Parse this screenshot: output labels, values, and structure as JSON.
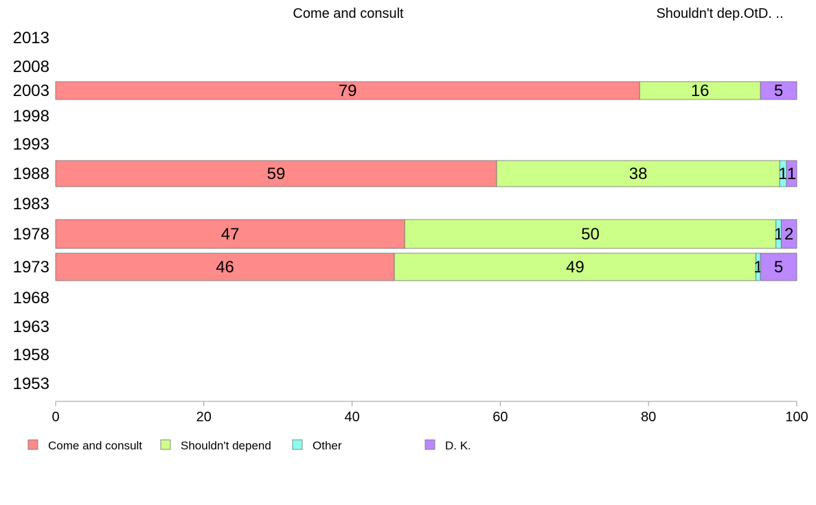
{
  "chart_data": {
    "type": "bar",
    "orientation": "horizontal",
    "stacked": true,
    "header_labels": [
      "Come and consult",
      "Shouldn't dep.OtD. .."
    ],
    "categories": [
      "2013",
      "2008",
      "2003",
      "1998",
      "1993",
      "1988",
      "1983",
      "1978",
      "1973",
      "1968",
      "1963",
      "1958",
      "1953"
    ],
    "series": [
      {
        "name": "Come and consult",
        "color": "#ff8a8a",
        "values": [
          null,
          null,
          78.8,
          null,
          null,
          59.5,
          null,
          47.1,
          45.7,
          null,
          null,
          null,
          null
        ],
        "labels": [
          "",
          "",
          "79",
          "",
          "",
          "59",
          "",
          "47",
          "46",
          "",
          "",
          "",
          ""
        ]
      },
      {
        "name": "Shouldn't depend",
        "color": "#ccff88",
        "values": [
          null,
          null,
          16.3,
          null,
          null,
          38.2,
          null,
          50.1,
          48.8,
          null,
          null,
          null,
          null
        ],
        "labels": [
          "",
          "",
          "16",
          "",
          "",
          "38",
          "",
          "50",
          "49",
          "",
          "",
          "",
          ""
        ]
      },
      {
        "name": "Other",
        "color": "#88ffee",
        "values": [
          null,
          null,
          0,
          null,
          null,
          0.9,
          null,
          0.7,
          0.6,
          null,
          null,
          null,
          null
        ],
        "labels": [
          "",
          "",
          "",
          "",
          "",
          "1",
          "",
          "1",
          "1",
          "",
          "",
          "",
          ""
        ]
      },
      {
        "name": "D. K.",
        "color": "#bb88ff",
        "values": [
          null,
          null,
          4.9,
          null,
          null,
          1.4,
          null,
          2.1,
          4.9,
          null,
          null,
          null,
          null
        ],
        "labels": [
          "",
          "",
          "5",
          "",
          "",
          "1",
          "",
          "2",
          "5",
          "",
          "",
          "",
          ""
        ]
      }
    ],
    "xlim": [
      0,
      100
    ],
    "xticks": [
      "0",
      "20",
      "40",
      "60",
      "80",
      "100"
    ],
    "legend_position": "bottom-left"
  }
}
